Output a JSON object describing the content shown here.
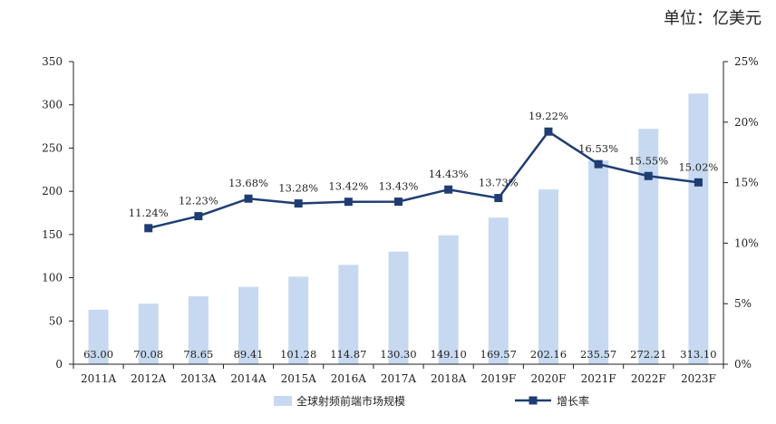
{
  "unit_label": "单位：亿美元",
  "colors": {
    "bar": "#c6d9f0",
    "line": "#1f3d73",
    "axis": "#222222"
  },
  "chart_data": {
    "type": "bar+line",
    "categories": [
      "2011A",
      "2012A",
      "2013A",
      "2014A",
      "2015A",
      "2016A",
      "2017A",
      "2018A",
      "2019F",
      "2020F",
      "2021F",
      "2022F",
      "2023F"
    ],
    "series": [
      {
        "name": "全球射频前端市场规模",
        "type": "bar",
        "axis": "left",
        "values": [
          63.0,
          70.08,
          78.65,
          89.41,
          101.28,
          114.87,
          130.3,
          149.1,
          169.57,
          202.16,
          235.57,
          272.21,
          313.1
        ],
        "labels": [
          "63.00",
          "70.08",
          "78.65",
          "89.41",
          "101.28",
          "114.87",
          "130.30",
          "149.10",
          "169.57",
          "202.16",
          "235.57",
          "272.21",
          "313.10"
        ]
      },
      {
        "name": "增长率",
        "type": "line",
        "axis": "right",
        "values": [
          null,
          11.24,
          12.23,
          13.68,
          13.28,
          13.42,
          13.43,
          14.43,
          13.73,
          19.22,
          16.53,
          15.55,
          15.02
        ],
        "labels": [
          "",
          "11.24%",
          "12.23%",
          "13.68%",
          "13.28%",
          "13.42%",
          "13.43%",
          "14.43%",
          "13.73%",
          "19.22%",
          "16.53%",
          "15.55%",
          "15.02%"
        ]
      }
    ],
    "y_left": {
      "min": 0,
      "max": 350,
      "ticks": [
        "0",
        "50",
        "100",
        "150",
        "200",
        "250",
        "300",
        "350"
      ]
    },
    "y_right": {
      "min": 0,
      "max": 25,
      "ticks": [
        "0%",
        "5%",
        "10%",
        "15%",
        "20%",
        "25%"
      ]
    },
    "grid": false,
    "legend_position": "bottom"
  }
}
